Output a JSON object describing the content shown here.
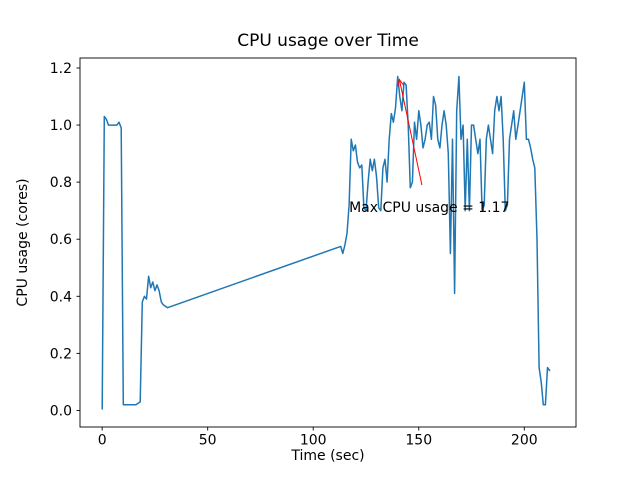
{
  "figure": {
    "background": "#ffffff"
  },
  "chart_data": {
    "type": "line",
    "title": "CPU usage over Time",
    "xlabel": "Time (sec)",
    "ylabel": "CPU usage (cores)",
    "xlim": [
      -10.5,
      224.5
    ],
    "ylim": [
      -0.058,
      1.235
    ],
    "xticks": [
      0,
      50,
      100,
      150,
      200
    ],
    "xtick_labels": [
      "0",
      "50",
      "100",
      "150",
      "200"
    ],
    "yticks": [
      0.0,
      0.2,
      0.4,
      0.6,
      0.8,
      1.0,
      1.2
    ],
    "ytick_labels": [
      "0.0",
      "0.2",
      "0.4",
      "0.6",
      "0.8",
      "1.0",
      "1.2"
    ],
    "grid": false,
    "legend": "none",
    "line_color": "#1f77b4",
    "line_width": 1.5,
    "spine_color": "#000000",
    "series": [
      {
        "name": "cpu-usage",
        "points": [
          [
            0,
            0.005
          ],
          [
            1,
            1.03
          ],
          [
            2,
            1.02
          ],
          [
            3,
            1.0
          ],
          [
            5,
            1.0
          ],
          [
            7,
            1.0
          ],
          [
            8,
            1.01
          ],
          [
            9,
            0.99
          ],
          [
            10,
            0.02
          ],
          [
            12,
            0.02
          ],
          [
            14,
            0.02
          ],
          [
            16,
            0.02
          ],
          [
            18,
            0.03
          ],
          [
            19,
            0.38
          ],
          [
            20,
            0.4
          ],
          [
            21,
            0.39
          ],
          [
            22,
            0.47
          ],
          [
            23,
            0.43
          ],
          [
            24,
            0.45
          ],
          [
            25,
            0.42
          ],
          [
            26,
            0.44
          ],
          [
            27,
            0.42
          ],
          [
            28,
            0.38
          ],
          [
            29,
            0.37
          ],
          [
            31,
            0.36
          ],
          [
            113,
            0.575
          ],
          [
            114,
            0.55
          ],
          [
            115,
            0.58
          ],
          [
            116,
            0.62
          ],
          [
            117,
            0.72
          ],
          [
            118,
            0.95
          ],
          [
            119,
            0.91
          ],
          [
            120,
            0.93
          ],
          [
            121,
            0.87
          ],
          [
            122,
            0.85
          ],
          [
            123,
            0.86
          ],
          [
            124,
            0.71
          ],
          [
            125,
            0.7
          ],
          [
            126,
            0.8
          ],
          [
            127,
            0.88
          ],
          [
            128,
            0.84
          ],
          [
            129,
            0.88
          ],
          [
            130,
            0.82
          ],
          [
            131,
            0.71
          ],
          [
            132,
            0.7
          ],
          [
            133,
            0.85
          ],
          [
            134,
            0.88
          ],
          [
            135,
            0.8
          ],
          [
            136,
            0.95
          ],
          [
            137,
            1.04
          ],
          [
            138,
            1.01
          ],
          [
            139,
            1.06
          ],
          [
            140,
            1.17
          ],
          [
            141,
            1.1
          ],
          [
            142,
            1.05
          ],
          [
            143,
            1.15
          ],
          [
            144,
            1.14
          ],
          [
            145,
            1.0
          ],
          [
            146,
            0.78
          ],
          [
            147,
            0.8
          ],
          [
            148,
            1.01
          ],
          [
            149,
            0.95
          ],
          [
            150,
            1.05
          ],
          [
            151,
            1.0
          ],
          [
            152,
            0.92
          ],
          [
            153,
            0.95
          ],
          [
            154,
            1.0
          ],
          [
            155,
            1.01
          ],
          [
            156,
            0.95
          ],
          [
            157,
            1.1
          ],
          [
            158,
            1.07
          ],
          [
            159,
            0.95
          ],
          [
            160,
            0.92
          ],
          [
            161,
            1.0
          ],
          [
            162,
            1.05
          ],
          [
            163,
            1.0
          ],
          [
            164,
            0.9
          ],
          [
            165,
            0.55
          ],
          [
            166,
            0.95
          ],
          [
            167,
            0.41
          ],
          [
            168,
            1.05
          ],
          [
            169,
            1.17
          ],
          [
            170,
            0.95
          ],
          [
            171,
            1.0
          ],
          [
            172,
            0.7
          ],
          [
            173,
            0.95
          ],
          [
            174,
            0.7
          ],
          [
            175,
            1.0
          ],
          [
            176,
            1.0
          ],
          [
            177,
            0.95
          ],
          [
            178,
            0.9
          ],
          [
            179,
            0.95
          ],
          [
            180,
            0.7
          ],
          [
            181,
            0.72
          ],
          [
            182,
            0.95
          ],
          [
            183,
            1.0
          ],
          [
            184,
            0.95
          ],
          [
            185,
            0.9
          ],
          [
            186,
            1.05
          ],
          [
            187,
            1.1
          ],
          [
            188,
            1.05
          ],
          [
            189,
            1.1
          ],
          [
            190,
            0.95
          ],
          [
            191,
            0.7
          ],
          [
            192,
            0.72
          ],
          [
            193,
            0.95
          ],
          [
            194,
            1.0
          ],
          [
            195,
            1.05
          ],
          [
            196,
            0.95
          ],
          [
            197,
            1.0
          ],
          [
            198,
            1.05
          ],
          [
            199,
            1.1
          ],
          [
            200,
            1.15
          ],
          [
            201,
            0.95
          ],
          [
            202,
            0.95
          ],
          [
            203,
            0.92
          ],
          [
            204,
            0.88
          ],
          [
            205,
            0.85
          ],
          [
            206,
            0.6
          ],
          [
            207,
            0.15
          ],
          [
            208,
            0.1
          ],
          [
            209,
            0.02
          ],
          [
            210,
            0.02
          ],
          [
            211,
            0.15
          ],
          [
            212,
            0.14
          ]
        ]
      }
    ],
    "annotation": {
      "text": "Max CPU usage = 1.17",
      "color": "#ff0000",
      "text_pos": [
        117,
        0.695
      ],
      "arrow_start": [
        151.5,
        0.79
      ],
      "arrow_end": [
        140.8,
        1.16
      ],
      "max_value": "1.17"
    }
  }
}
